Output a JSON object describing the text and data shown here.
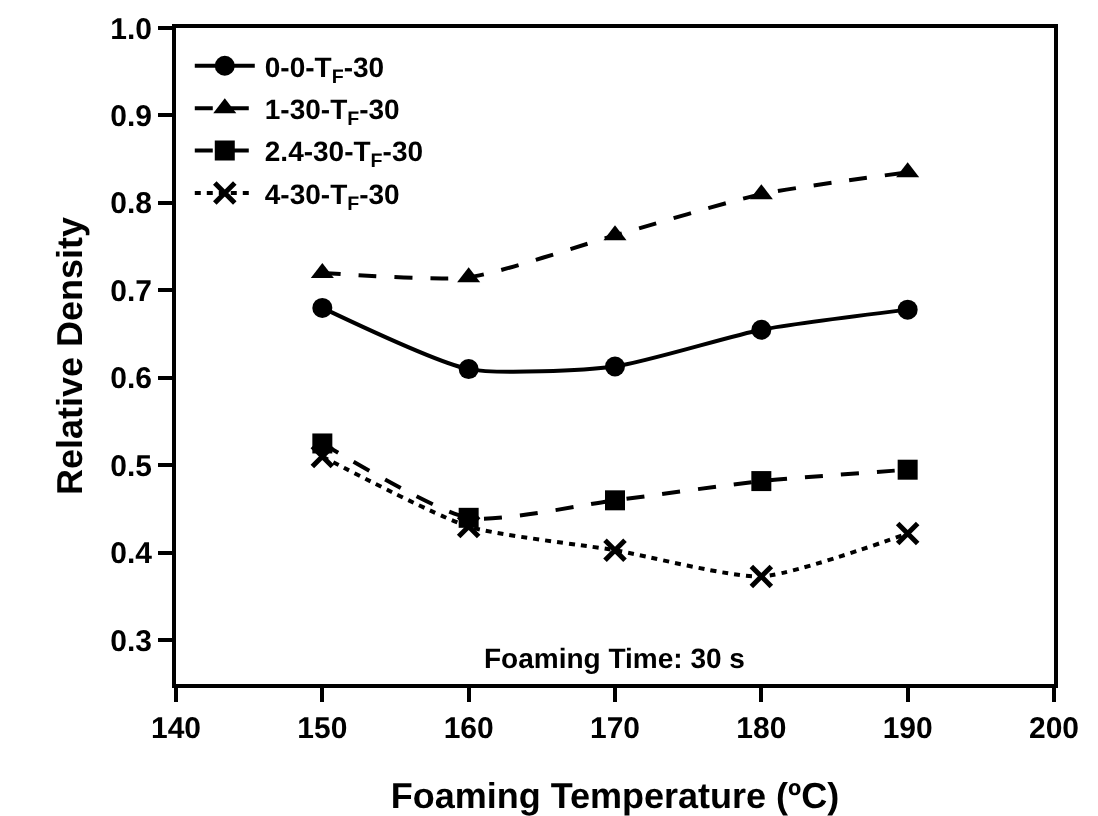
{
  "chart_data": {
    "type": "line",
    "xlabel": "Foaming Temperature (ºC)",
    "ylabel": "Relative Density",
    "x": [
      150,
      160,
      170,
      180,
      190
    ],
    "series": [
      {
        "name": "0-0-T$_{F}$-30",
        "color": "#000000",
        "marker": "circle",
        "line_style": "solid",
        "values": [
          0.68,
          0.61,
          0.613,
          0.655,
          0.678
        ]
      },
      {
        "name": "1-30-T$_{F}$-30",
        "color": "#000000",
        "marker": "triangle",
        "line_style": "dashed",
        "values": [
          0.72,
          0.715,
          0.763,
          0.81,
          0.835
        ]
      },
      {
        "name": "2.4-30-T$_{F}$-30",
        "color": "#000000",
        "marker": "square",
        "line_style": "dashed",
        "values": [
          0.525,
          0.44,
          0.46,
          0.482,
          0.495
        ]
      },
      {
        "name": "4-30-T$_{F}$-30",
        "color": "#000000",
        "marker": "cross",
        "line_style": "dotted",
        "values": [
          0.51,
          0.43,
          0.403,
          0.373,
          0.422
        ]
      }
    ],
    "xlim": [
      140,
      200
    ],
    "xticks": [
      140,
      150,
      160,
      170,
      180,
      190,
      200
    ],
    "ylim": [
      0.25,
      1.0
    ],
    "yticks": [
      0.3,
      0.4,
      0.5,
      0.6,
      0.7,
      0.8,
      0.9,
      {
        "value": 1,
        "label": "1.0"
      }
    ],
    "grid": false,
    "legend": "top left",
    "annotations": [
      "Foaming Time: 30 s"
    ]
  }
}
